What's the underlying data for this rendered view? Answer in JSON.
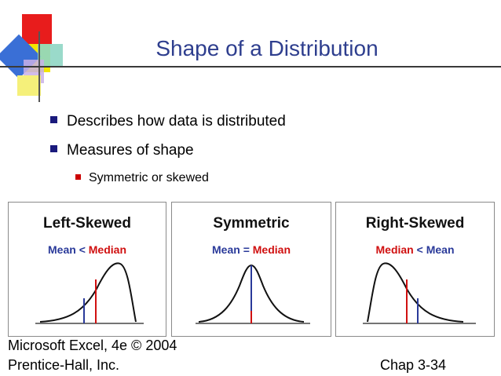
{
  "slide": {
    "title": "Shape of a Distribution",
    "bullets": [
      "Describes how data is distributed",
      "Measures of shape"
    ],
    "sub_bullets": [
      "Symmetric or skewed"
    ]
  },
  "panels": [
    {
      "title": "Left-Skewed",
      "sub_left": "Mean",
      "op": "<",
      "sub_right": "Median"
    },
    {
      "title": "Symmetric",
      "sub_left": "Mean",
      "op": "=",
      "sub_right": "Median"
    },
    {
      "title": "Right-Skewed",
      "sub_left": "Median",
      "op": "<",
      "sub_right": "Mean"
    }
  ],
  "footer": {
    "line1": "Microsoft Excel, 4e © 2004",
    "line2": "Prentice-Hall, Inc.",
    "chap": "Chap 3-34"
  },
  "colors": {
    "title": "#2e3e8e",
    "mean": "#2a3a9a",
    "median": "#d01010",
    "bullet": "#1a1a7c"
  }
}
